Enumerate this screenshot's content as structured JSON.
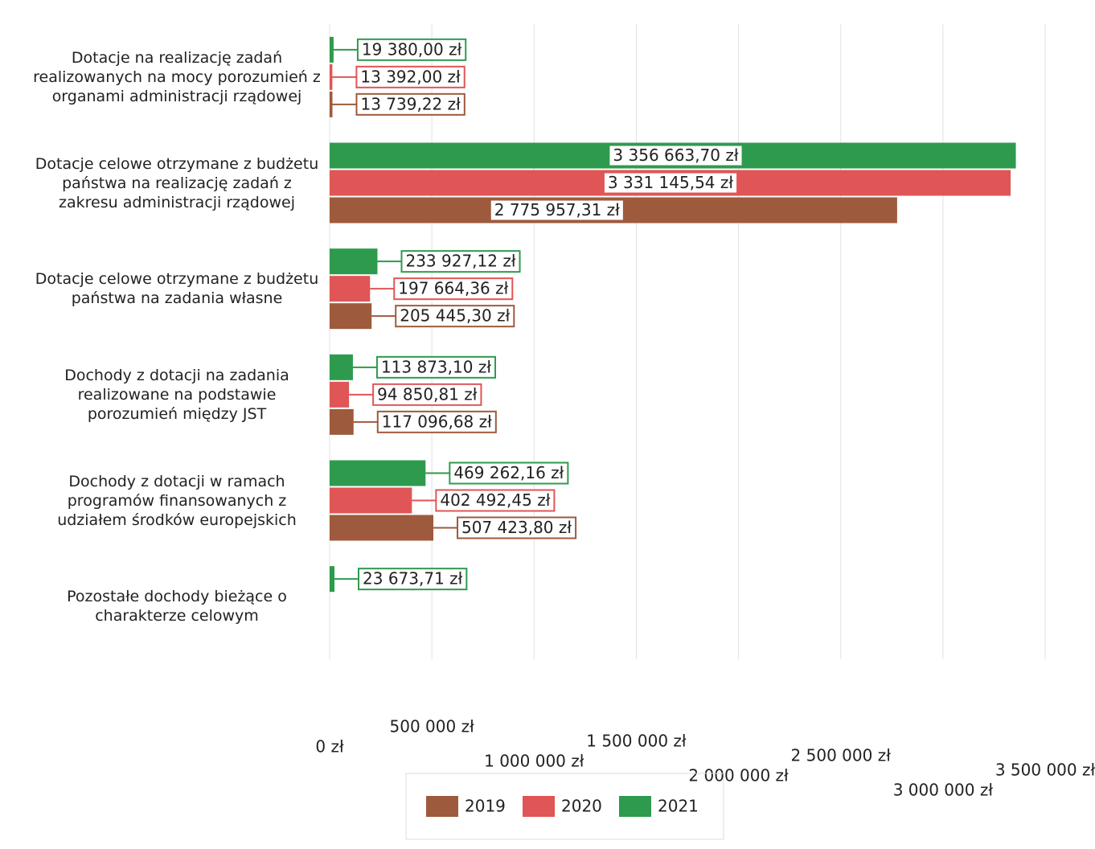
{
  "chart_data": {
    "type": "bar",
    "orientation": "horizontal",
    "categories": [
      "Dotacje na realizację zadań realizowanych na mocy porozumień z organami administracji rządowej",
      "Dotacje celowe otrzymane z budżetu państwa na realizację zadań z zakresu administracji rządowej",
      "Dotacje celowe otrzymane z budżetu państwa na zadania własne",
      "Dochody z dotacji na zadania realizowane na podstawie porozumień między JST",
      "Dochody z dotacji w ramach programów finansowanych z udziałem środków europejskich",
      "Pozostałe dochody bieżące o charakterze celowym"
    ],
    "series": [
      {
        "name": "2021",
        "color": "#2e9a4e",
        "values": [
          19380.0,
          3356663.7,
          233927.12,
          113873.1,
          469262.16,
          23673.71
        ],
        "value_labels": [
          "19 380,00 zł",
          "3 356 663,70 zł",
          "233 927,12 zł",
          "113 873,10 zł",
          "469 262,16 zł",
          "23 673,71 zł"
        ]
      },
      {
        "name": "2020",
        "color": "#e05555",
        "values": [
          13392.0,
          3331145.54,
          197664.36,
          94850.81,
          402492.45,
          null
        ],
        "value_labels": [
          "13 392,00 zł",
          "3 331 145,54 zł",
          "197 664,36 zł",
          "94 850,81 zł",
          "402 492,45 zł",
          null
        ]
      },
      {
        "name": "2019",
        "color": "#9e5a3c",
        "values": [
          13739.22,
          2775957.31,
          205445.3,
          117096.68,
          507423.8,
          null
        ],
        "value_labels": [
          "13 739,22 zł",
          "2 775 957,31 zł",
          "205 445,30 zł",
          "117 096,68 zł",
          "507 423,80 zł",
          null
        ]
      }
    ],
    "xlim": [
      0,
      3500000
    ],
    "xticks": [
      {
        "value": 0,
        "label": "0 zł"
      },
      {
        "value": 500000,
        "label": "500 000 zł"
      },
      {
        "value": 1000000,
        "label": "1 000 000 zł"
      },
      {
        "value": 1500000,
        "label": "1 500 000 zł"
      },
      {
        "value": 2000000,
        "label": "2 000 000 zł"
      },
      {
        "value": 2500000,
        "label": "2 500 000 zł"
      },
      {
        "value": 3000000,
        "label": "3 000 000 zł"
      },
      {
        "value": 3500000,
        "label": "3 500 000 zł"
      }
    ],
    "grid": true,
    "legend": "bottom"
  }
}
